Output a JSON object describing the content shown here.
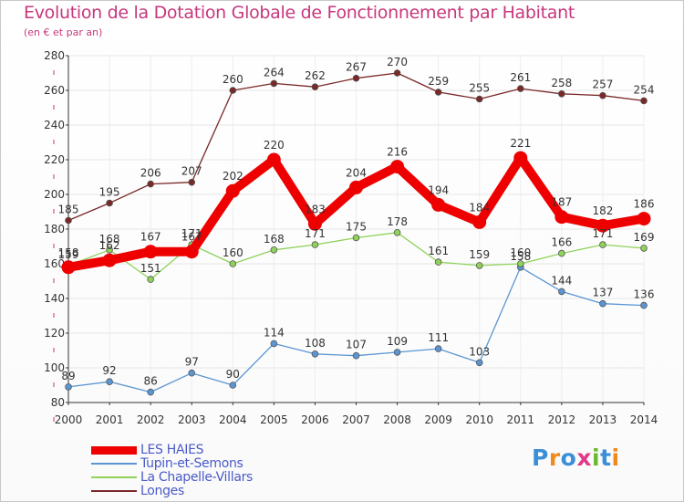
{
  "title": "Evolution de la Dotation Globale de Fonctionnement par Habitant",
  "subtitle": "(en € et par an)",
  "logo_text": "Proxiti",
  "colors": {
    "title": "#c8377c",
    "axis": "#333333",
    "legend_text": "#4a5ac8",
    "tick_marks": "#cc3366"
  },
  "chart_data": {
    "type": "line",
    "title": "Evolution de la Dotation Globale de Fonctionnement par Habitant",
    "subtitle": "(en € et par an)",
    "xlabel": "",
    "ylabel": "",
    "ylim": [
      80,
      280
    ],
    "yticks": [
      80,
      100,
      120,
      140,
      160,
      180,
      200,
      220,
      240,
      260,
      280
    ],
    "grid": true,
    "legend_position": "bottom-left",
    "x": [
      "2000",
      "2001",
      "2002",
      "2003",
      "2004",
      "2005",
      "2006",
      "2007",
      "2008",
      "2009",
      "2010",
      "2011",
      "2012",
      "2013",
      "2014"
    ],
    "series": [
      {
        "name": "LES HAIES",
        "color": "#ee0000",
        "thick": true,
        "values": [
          158,
          162,
          167,
          167,
          202,
          220,
          183,
          204,
          216,
          194,
          184,
          221,
          187,
          182,
          186
        ],
        "labels": [
          "158",
          "162",
          "167",
          "167",
          "202",
          "220",
          "183",
          "204",
          "216",
          "194",
          "184",
          "221",
          "187",
          "182",
          "186"
        ]
      },
      {
        "name": "Tupin-et-Semons",
        "color": "#5b96d2",
        "thick": false,
        "values": [
          89,
          92,
          86,
          97,
          90,
          114,
          108,
          107,
          109,
          111,
          103,
          158,
          144,
          137,
          136
        ],
        "labels": [
          "89",
          "92",
          "86",
          "97",
          "90",
          "114",
          "108",
          "107",
          "109",
          "111",
          "103",
          "158",
          "144",
          "137",
          "136"
        ]
      },
      {
        "name": "La Chapelle-Villars",
        "color": "#8fd25a",
        "thick": false,
        "values": [
          159,
          168,
          151,
          171,
          160,
          168,
          171,
          175,
          178,
          161,
          159,
          160,
          166,
          171,
          169
        ],
        "labels": [
          "159",
          "168",
          "151",
          "171",
          "160",
          "168",
          "171",
          "175",
          "178",
          "161",
          "159",
          "160",
          "166",
          "171",
          "169"
        ]
      },
      {
        "name": "Longes",
        "color": "#7a2828",
        "thick": false,
        "values": [
          185,
          195,
          206,
          207,
          260,
          264,
          262,
          267,
          270,
          259,
          255,
          261,
          258,
          257,
          254
        ],
        "labels": [
          "185",
          "195",
          "206",
          "207",
          "260",
          "264",
          "262",
          "267",
          "270",
          "259",
          "255",
          "261",
          "258",
          "257",
          "254"
        ]
      }
    ]
  }
}
